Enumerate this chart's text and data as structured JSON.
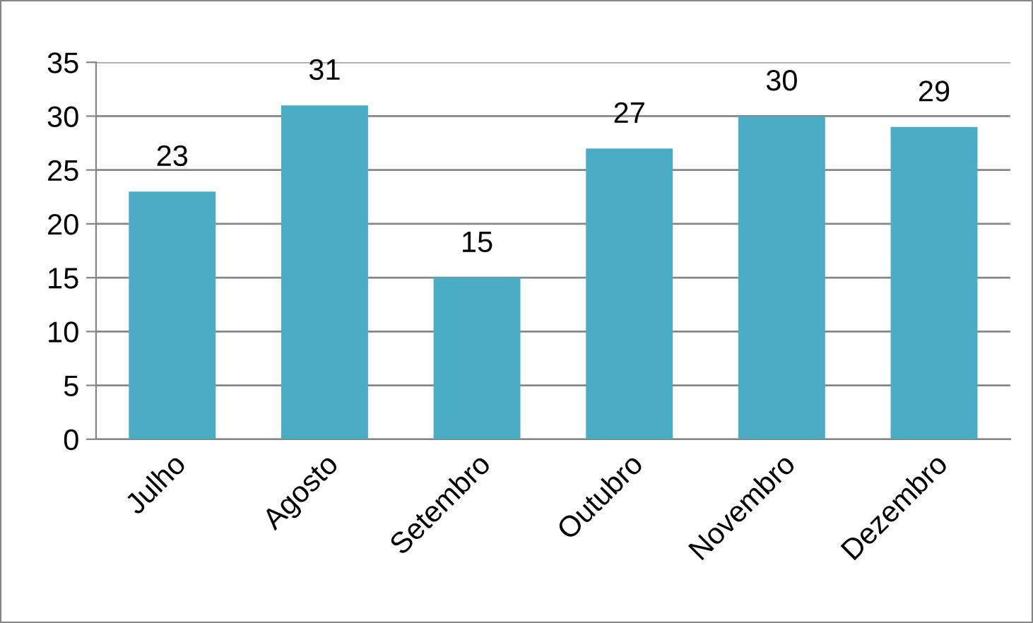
{
  "chart_data": {
    "type": "bar",
    "categories": [
      "Julho",
      "Agosto",
      "Setembro",
      "Outubro",
      "Novembro",
      "Dezembro"
    ],
    "values": [
      23,
      31,
      15,
      27,
      30,
      29
    ],
    "color": "#4bacc6",
    "ylim": [
      0,
      35
    ],
    "yticks": [
      0,
      5,
      10,
      15,
      20,
      25,
      30,
      35
    ],
    "grid": "y",
    "data_labels": true
  }
}
